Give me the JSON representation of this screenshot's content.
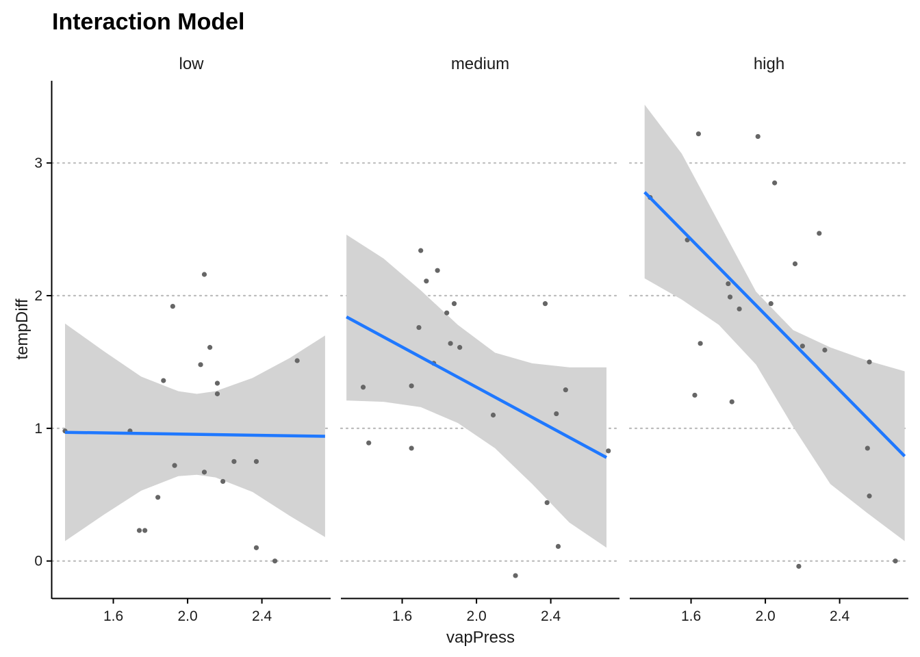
{
  "colors": {
    "fit_line": "#1f78ff",
    "ribbon": "#d3d3d3",
    "points": "#666666",
    "grid": "#bdbdbd",
    "axis": "#000000"
  },
  "chart_data": {
    "type": "scatter",
    "title": "Interaction Model",
    "xlabel": "vapPress",
    "ylabel": "tempDiff",
    "xlim": [
      1.27,
      2.77
    ],
    "ylim": [
      -0.28,
      3.62
    ],
    "x_ticks": [
      1.6,
      2.0,
      2.4
    ],
    "x_tick_labels": [
      "1.6",
      "2.0",
      "2.4"
    ],
    "y_ticks": [
      0,
      1,
      2,
      3
    ],
    "y_tick_labels": [
      "0",
      "1",
      "2",
      "3"
    ],
    "grid": "horizontal dotted",
    "facets": [
      {
        "label": "low",
        "points": [
          [
            1.34,
            0.98
          ],
          [
            1.69,
            0.98
          ],
          [
            1.74,
            0.23
          ],
          [
            1.77,
            0.23
          ],
          [
            1.84,
            0.48
          ],
          [
            1.87,
            1.36
          ],
          [
            1.92,
            1.92
          ],
          [
            1.93,
            0.72
          ],
          [
            2.07,
            1.48
          ],
          [
            2.09,
            0.67
          ],
          [
            2.09,
            2.16
          ],
          [
            2.12,
            1.61
          ],
          [
            2.16,
            1.34
          ],
          [
            2.16,
            1.26
          ],
          [
            2.19,
            0.6
          ],
          [
            2.25,
            0.75
          ],
          [
            2.37,
            0.75
          ],
          [
            2.37,
            0.1
          ],
          [
            2.47,
            0.0
          ],
          [
            2.59,
            1.51
          ]
        ],
        "fit": {
          "x_range": [
            1.34,
            2.74
          ],
          "y_range": [
            0.97,
            0.94
          ]
        },
        "ribbon": {
          "x": [
            1.34,
            1.55,
            1.75,
            1.95,
            2.05,
            2.15,
            2.35,
            2.55,
            2.74
          ],
          "upper": [
            1.79,
            1.58,
            1.39,
            1.28,
            1.26,
            1.28,
            1.38,
            1.53,
            1.7
          ],
          "lower": [
            0.15,
            0.35,
            0.53,
            0.64,
            0.65,
            0.63,
            0.52,
            0.34,
            0.18
          ]
        }
      },
      {
        "label": "medium",
        "points": [
          [
            1.39,
            1.31
          ],
          [
            1.42,
            0.89
          ],
          [
            1.65,
            1.32
          ],
          [
            1.65,
            0.85
          ],
          [
            1.69,
            1.76
          ],
          [
            1.7,
            2.34
          ],
          [
            1.73,
            2.11
          ],
          [
            1.77,
            1.49
          ],
          [
            1.79,
            2.19
          ],
          [
            1.84,
            1.87
          ],
          [
            1.86,
            1.64
          ],
          [
            1.88,
            1.94
          ],
          [
            1.91,
            1.61
          ],
          [
            2.09,
            1.1
          ],
          [
            2.21,
            -0.11
          ],
          [
            2.37,
            1.94
          ],
          [
            2.38,
            0.44
          ],
          [
            2.43,
            1.11
          ],
          [
            2.44,
            0.11
          ],
          [
            2.48,
            1.29
          ],
          [
            2.71,
            0.83
          ]
        ],
        "fit": {
          "x_range": [
            1.3,
            2.7
          ],
          "y_range": [
            1.84,
            0.78
          ]
        },
        "ribbon": {
          "x": [
            1.3,
            1.5,
            1.7,
            1.9,
            2.1,
            2.3,
            2.5,
            2.7
          ],
          "upper": [
            2.46,
            2.28,
            2.04,
            1.78,
            1.57,
            1.49,
            1.46,
            1.46
          ],
          "lower": [
            1.21,
            1.2,
            1.16,
            1.04,
            0.85,
            0.58,
            0.29,
            0.1
          ]
        }
      },
      {
        "label": "high",
        "points": [
          [
            1.38,
            2.74
          ],
          [
            1.58,
            2.42
          ],
          [
            1.62,
            1.25
          ],
          [
            1.64,
            3.22
          ],
          [
            1.65,
            1.64
          ],
          [
            1.8,
            2.09
          ],
          [
            1.81,
            1.99
          ],
          [
            1.82,
            1.2
          ],
          [
            1.86,
            1.9
          ],
          [
            1.96,
            3.2
          ],
          [
            2.03,
            1.94
          ],
          [
            2.05,
            2.85
          ],
          [
            2.16,
            2.24
          ],
          [
            2.18,
            -0.04
          ],
          [
            2.2,
            1.62
          ],
          [
            2.29,
            2.47
          ],
          [
            2.32,
            1.59
          ],
          [
            2.55,
            0.85
          ],
          [
            2.56,
            1.5
          ],
          [
            2.56,
            0.49
          ],
          [
            2.7,
            0.0
          ]
        ],
        "fit": {
          "x_range": [
            1.35,
            2.75
          ],
          "y_range": [
            2.78,
            0.79
          ]
        },
        "ribbon": {
          "x": [
            1.35,
            1.55,
            1.75,
            1.95,
            2.15,
            2.35,
            2.55,
            2.75
          ],
          "upper": [
            3.44,
            3.07,
            2.55,
            2.03,
            1.74,
            1.61,
            1.51,
            1.43
          ],
          "lower": [
            2.13,
            1.97,
            1.78,
            1.48,
            1.01,
            0.58,
            0.36,
            0.15
          ]
        }
      }
    ]
  }
}
